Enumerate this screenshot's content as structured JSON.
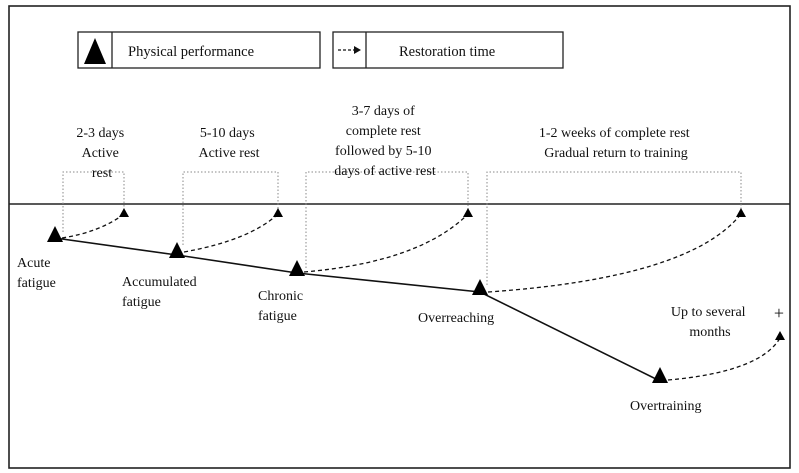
{
  "legend": {
    "performance": {
      "label": "Physical performance",
      "icon": "triangle-marker-icon"
    },
    "restoration": {
      "label": "Restoration time",
      "icon": "dashed-arrow-icon"
    }
  },
  "stages": [
    {
      "id": "acute-fatigue",
      "label_lines": [
        "Acute",
        "fatigue"
      ]
    },
    {
      "id": "accumulated-fatigue",
      "label_lines": [
        "Accumulated",
        "fatigue"
      ]
    },
    {
      "id": "chronic-fatigue",
      "label_lines": [
        "Chronic",
        "fatigue"
      ]
    },
    {
      "id": "overreaching",
      "label_lines": [
        "Overreaching"
      ]
    },
    {
      "id": "overtraining",
      "label_lines": [
        "Overtraining"
      ]
    }
  ],
  "restoration": [
    {
      "id": "acute-fatigue",
      "label_lines": [
        "2-3 days",
        "Active",
        "rest"
      ]
    },
    {
      "id": "accumulated-fatigue",
      "label_lines": [
        "5-10 days",
        "Active rest"
      ]
    },
    {
      "id": "chronic-fatigue",
      "label_lines": [
        "3-7 days of",
        "complete rest",
        "followed by 5-10",
        "days of active rest"
      ]
    },
    {
      "id": "overreaching",
      "label_lines": [
        "1-2 weeks of complete rest",
        "Gradual return to training"
      ]
    },
    {
      "id": "overtraining",
      "label_lines": [
        "Up to several",
        "months"
      ],
      "extra_mark": "+"
    }
  ],
  "colors": {
    "line": "#111111",
    "bracket": "#8a8a8a",
    "marker": "#000000",
    "frame": "#222222"
  }
}
